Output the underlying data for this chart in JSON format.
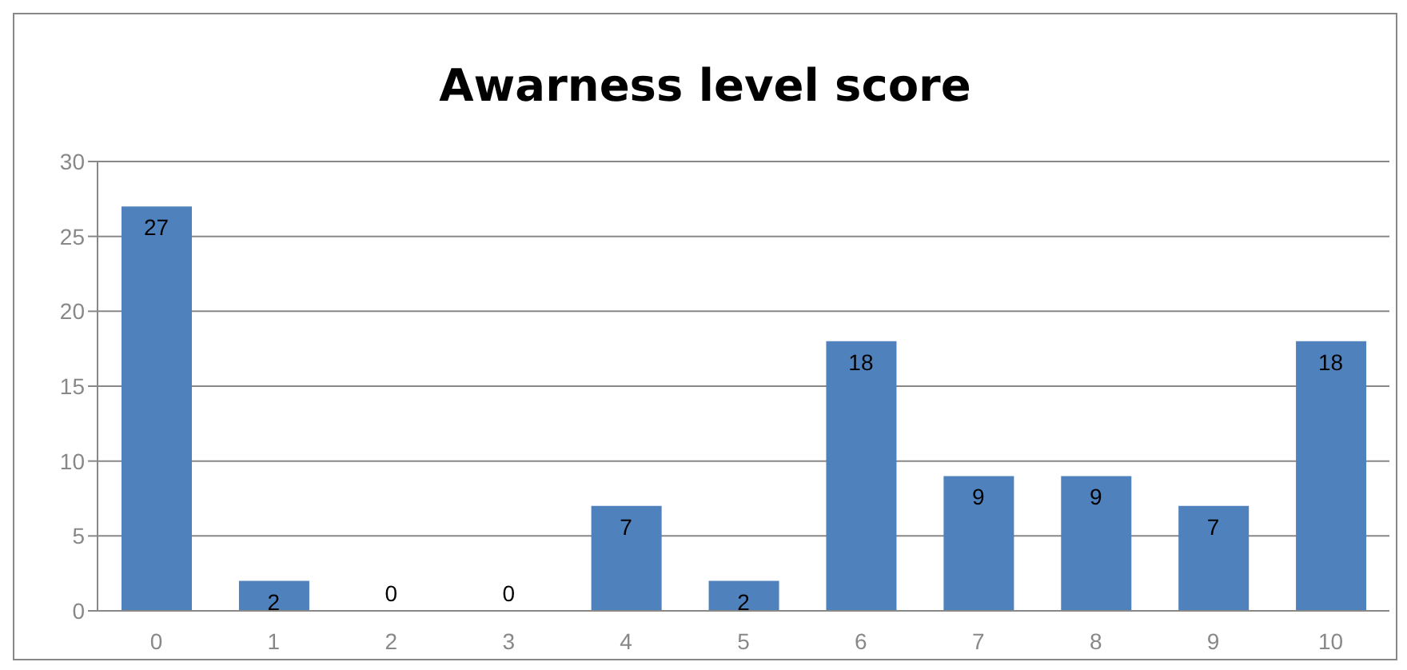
{
  "chart_data": {
    "type": "bar",
    "title": "Awarness level score",
    "categories": [
      "0",
      "1",
      "2",
      "3",
      "4",
      "5",
      "6",
      "7",
      "8",
      "9",
      "10"
    ],
    "values": [
      27,
      2,
      0,
      0,
      7,
      2,
      18,
      9,
      9,
      7,
      18
    ],
    "color": "#4f81bd",
    "ylim": [
      0,
      30
    ],
    "yticks": [
      0,
      5,
      10,
      15,
      20,
      25,
      30
    ],
    "grid": "y",
    "data_labels": true
  }
}
